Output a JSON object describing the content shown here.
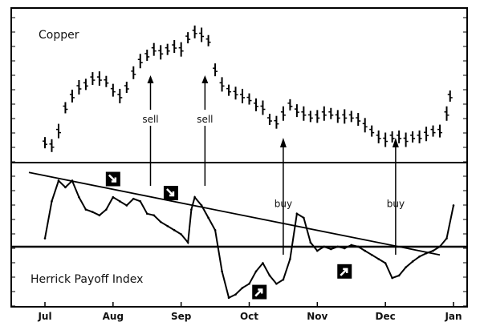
{
  "chart_data": [
    {
      "type": "bar",
      "subtype": "ohlc",
      "title": "Copper",
      "categories": [
        "Jul",
        "Aug",
        "Sep",
        "Oct",
        "Nov",
        "Dec",
        "Jan"
      ],
      "values": [
        [
          0.0,
          76
        ],
        [
          0.1,
          75
        ],
        [
          0.2,
          80
        ],
        [
          0.3,
          88
        ],
        [
          0.4,
          92
        ],
        [
          0.5,
          95
        ],
        [
          0.6,
          96
        ],
        [
          0.7,
          98
        ],
        [
          0.8,
          98
        ],
        [
          0.9,
          97
        ],
        [
          1.0,
          94
        ],
        [
          1.1,
          92
        ],
        [
          1.2,
          95
        ],
        [
          1.3,
          100
        ],
        [
          1.4,
          104
        ],
        [
          1.5,
          106
        ],
        [
          1.6,
          108
        ],
        [
          1.7,
          107
        ],
        [
          1.8,
          108
        ],
        [
          1.9,
          109
        ],
        [
          2.0,
          108
        ],
        [
          2.1,
          112
        ],
        [
          2.2,
          114
        ],
        [
          2.3,
          113
        ],
        [
          2.4,
          111
        ],
        [
          2.5,
          101
        ],
        [
          2.6,
          96
        ],
        [
          2.7,
          94
        ],
        [
          2.8,
          93
        ],
        [
          2.9,
          92
        ],
        [
          3.0,
          91
        ],
        [
          3.1,
          89
        ],
        [
          3.2,
          88
        ],
        [
          3.3,
          84
        ],
        [
          3.4,
          83
        ],
        [
          3.5,
          86
        ],
        [
          3.6,
          89
        ],
        [
          3.7,
          87
        ],
        [
          3.8,
          86
        ],
        [
          3.9,
          85
        ],
        [
          4.0,
          85
        ],
        [
          4.1,
          86
        ],
        [
          4.2,
          86
        ],
        [
          4.3,
          85
        ],
        [
          4.4,
          85
        ],
        [
          4.5,
          85
        ],
        [
          4.6,
          84
        ],
        [
          4.7,
          82
        ],
        [
          4.8,
          80
        ],
        [
          4.9,
          78
        ],
        [
          5.0,
          77
        ],
        [
          5.1,
          78
        ],
        [
          5.2,
          78
        ],
        [
          5.3,
          77
        ],
        [
          5.4,
          78
        ],
        [
          5.5,
          78
        ],
        [
          5.6,
          79
        ],
        [
          5.7,
          80
        ],
        [
          5.8,
          80
        ],
        [
          5.9,
          86
        ],
        [
          5.95,
          92
        ]
      ],
      "annotations": [
        {
          "text": "sell",
          "x": 1.55,
          "y": 84
        },
        {
          "text": "sell",
          "x": 2.35,
          "y": 84
        },
        {
          "text": "buy",
          "x": 3.5,
          "y": 79
        },
        {
          "text": "buy",
          "x": 5.15,
          "y": 79
        }
      ]
    },
    {
      "type": "line",
      "title": "Herrick Payoff Index",
      "categories": [
        "Jul",
        "Aug",
        "Sep",
        "Oct",
        "Nov",
        "Dec",
        "Jan"
      ],
      "series": [
        {
          "values": [
            [
              0.0,
              10
            ],
            [
              0.1,
              55
            ],
            [
              0.2,
              80
            ],
            [
              0.3,
              72
            ],
            [
              0.4,
              80
            ],
            [
              0.5,
              60
            ],
            [
              0.6,
              45
            ],
            [
              0.7,
              42
            ],
            [
              0.8,
              38
            ],
            [
              0.9,
              45
            ],
            [
              1.0,
              60
            ],
            [
              1.1,
              55
            ],
            [
              1.2,
              50
            ],
            [
              1.3,
              58
            ],
            [
              1.4,
              55
            ],
            [
              1.5,
              40
            ],
            [
              1.6,
              38
            ],
            [
              1.7,
              30
            ],
            [
              1.8,
              25
            ],
            [
              1.9,
              20
            ],
            [
              2.0,
              15
            ],
            [
              2.1,
              5
            ],
            [
              2.15,
              45
            ],
            [
              2.2,
              60
            ],
            [
              2.3,
              50
            ],
            [
              2.4,
              35
            ],
            [
              2.5,
              20
            ],
            [
              2.6,
              -30
            ],
            [
              2.7,
              -62
            ],
            [
              2.8,
              -58
            ],
            [
              2.9,
              -50
            ],
            [
              3.0,
              -45
            ],
            [
              3.1,
              -30
            ],
            [
              3.2,
              -20
            ],
            [
              3.3,
              -35
            ],
            [
              3.4,
              -45
            ],
            [
              3.5,
              -40
            ],
            [
              3.6,
              -15
            ],
            [
              3.7,
              40
            ],
            [
              3.8,
              35
            ],
            [
              3.9,
              5
            ],
            [
              4.0,
              -5
            ],
            [
              4.1,
              0
            ],
            [
              4.2,
              -3
            ],
            [
              4.3,
              0
            ],
            [
              4.4,
              -2
            ],
            [
              4.5,
              2
            ],
            [
              4.6,
              0
            ],
            [
              4.7,
              -5
            ],
            [
              4.8,
              -10
            ],
            [
              4.9,
              -15
            ],
            [
              5.0,
              -20
            ],
            [
              5.1,
              -38
            ],
            [
              5.2,
              -35
            ],
            [
              5.3,
              -25
            ],
            [
              5.4,
              -18
            ],
            [
              5.5,
              -12
            ],
            [
              5.6,
              -8
            ],
            [
              5.7,
              -5
            ],
            [
              5.8,
              0
            ],
            [
              5.9,
              10
            ],
            [
              6.0,
              50
            ]
          ]
        }
      ],
      "trendline": [
        [
          0.0,
          90
        ],
        [
          5.8,
          -10
        ]
      ],
      "zero_line": 0,
      "annotations": [
        {
          "text": "buy",
          "x": 3.5,
          "y": 48
        },
        {
          "text": "buy",
          "x": 5.15,
          "y": 48
        }
      ],
      "signal_markers": [
        {
          "x": 1.0,
          "y": 82,
          "direction": "down"
        },
        {
          "x": 1.85,
          "y": 65,
          "direction": "down"
        },
        {
          "x": 3.15,
          "y": -55,
          "direction": "up"
        },
        {
          "x": 4.4,
          "y": -30,
          "direction": "up"
        }
      ]
    }
  ]
}
